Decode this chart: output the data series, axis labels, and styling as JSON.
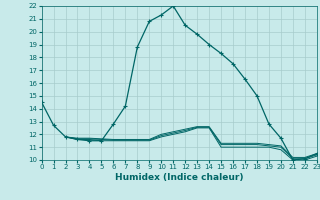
{
  "title": "",
  "xlabel": "Humidex (Indice chaleur)",
  "xlim": [
    0,
    23
  ],
  "ylim": [
    10,
    22
  ],
  "yticks": [
    10,
    11,
    12,
    13,
    14,
    15,
    16,
    17,
    18,
    19,
    20,
    21,
    22
  ],
  "xticks": [
    0,
    1,
    2,
    3,
    4,
    5,
    6,
    7,
    8,
    9,
    10,
    11,
    12,
    13,
    14,
    15,
    16,
    17,
    18,
    19,
    20,
    21,
    22,
    23
  ],
  "background_color": "#c8eaea",
  "grid_color": "#a8cccc",
  "line_color": "#006666",
  "main_line": {
    "x": [
      0,
      1,
      2,
      3,
      4,
      5,
      6,
      7,
      8,
      9,
      10,
      11,
      12,
      13,
      14,
      15,
      16,
      17,
      18,
      19,
      20,
      21,
      22,
      23
    ],
    "y": [
      14.5,
      12.7,
      11.8,
      11.6,
      11.5,
      11.5,
      12.8,
      14.2,
      18.8,
      20.8,
      21.3,
      22.0,
      20.5,
      19.8,
      19.0,
      18.3,
      17.5,
      16.3,
      15.0,
      12.8,
      11.7,
      10.0,
      10.1,
      10.5
    ]
  },
  "flat_lines": [
    {
      "x": [
        2,
        3,
        4,
        5,
        6,
        7,
        8,
        9,
        10,
        11,
        12,
        13,
        14,
        15,
        16,
        17,
        18,
        19,
        20,
        21,
        22,
        23
      ],
      "y": [
        11.8,
        11.6,
        11.6,
        11.5,
        11.5,
        11.5,
        11.5,
        11.5,
        11.8,
        12.0,
        12.2,
        12.5,
        12.5,
        11.0,
        11.0,
        11.0,
        11.0,
        11.0,
        10.8,
        10.0,
        10.0,
        10.3
      ]
    },
    {
      "x": [
        2,
        3,
        4,
        5,
        6,
        7,
        8,
        9,
        10,
        11,
        12,
        13,
        14,
        15,
        16,
        17,
        18,
        19,
        20,
        21,
        22,
        23
      ],
      "y": [
        11.8,
        11.65,
        11.65,
        11.6,
        11.55,
        11.55,
        11.55,
        11.55,
        11.9,
        12.1,
        12.3,
        12.55,
        12.55,
        11.2,
        11.2,
        11.2,
        11.2,
        11.1,
        11.0,
        10.1,
        10.1,
        10.4
      ]
    },
    {
      "x": [
        2,
        3,
        4,
        5,
        6,
        7,
        8,
        9,
        10,
        11,
        12,
        13,
        14,
        15,
        16,
        17,
        18,
        19,
        20,
        21,
        22,
        23
      ],
      "y": [
        11.8,
        11.7,
        11.7,
        11.65,
        11.6,
        11.6,
        11.6,
        11.6,
        12.0,
        12.2,
        12.4,
        12.6,
        12.6,
        11.3,
        11.3,
        11.3,
        11.3,
        11.2,
        11.1,
        10.2,
        10.2,
        10.5
      ]
    }
  ]
}
